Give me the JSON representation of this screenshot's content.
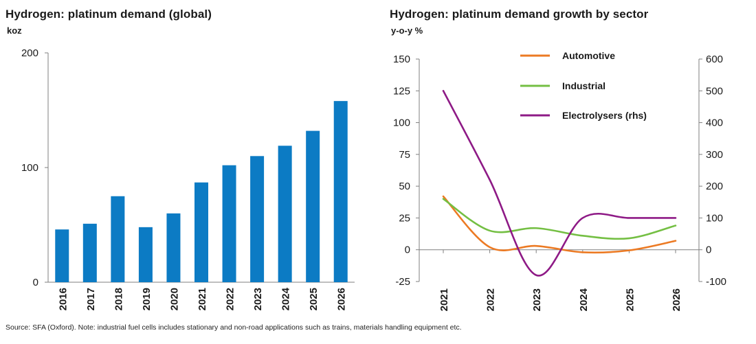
{
  "colors": {
    "bar": "#0c7bc4",
    "automotive": "#ec7a23",
    "industrial": "#74bf43",
    "electrolysers": "#8e1a86",
    "axis": "#7f7f7f"
  },
  "source_note": "Source: SFA (Oxford). Note: industrial fuel cells includes stationary and non-road applications such as trains, materials handling equipment etc.",
  "chart_data": [
    {
      "type": "bar",
      "title": "Hydrogen: platinum demand (global)",
      "ylabel": "koz",
      "xlabel": "",
      "ylim": [
        0,
        200
      ],
      "yticks": [
        0,
        100,
        200
      ],
      "categories": [
        "2016",
        "2017",
        "2018",
        "2019",
        "2020",
        "2021",
        "2022",
        "2023",
        "2024",
        "2025",
        "2026"
      ],
      "values": [
        46,
        51,
        75,
        48,
        60,
        87,
        102,
        110,
        119,
        132,
        158
      ]
    },
    {
      "type": "line",
      "title": "Hydrogen: platinum demand growth by sector",
      "ylabel": "y-o-y %",
      "x": [
        "2021",
        "2022",
        "2023",
        "2024",
        "2025",
        "2026"
      ],
      "ylim_left": [
        -25,
        150
      ],
      "yticks_left": [
        -25,
        0,
        25,
        50,
        75,
        100,
        125,
        150
      ],
      "ylim_right": [
        -100,
        600
      ],
      "yticks_right": [
        -100,
        0,
        100,
        200,
        300,
        400,
        500,
        600
      ],
      "legend_position": "top-center",
      "series": [
        {
          "name": "Automotive",
          "axis": "left",
          "values": [
            42,
            2,
            3,
            -2,
            -0.5,
            7
          ]
        },
        {
          "name": "Industrial",
          "axis": "left",
          "values": [
            40,
            15,
            17,
            11,
            9,
            19
          ]
        },
        {
          "name": "Electrolysers (rhs)",
          "axis": "right",
          "values": [
            500,
            220,
            -80,
            100,
            100,
            100
          ]
        }
      ]
    }
  ]
}
